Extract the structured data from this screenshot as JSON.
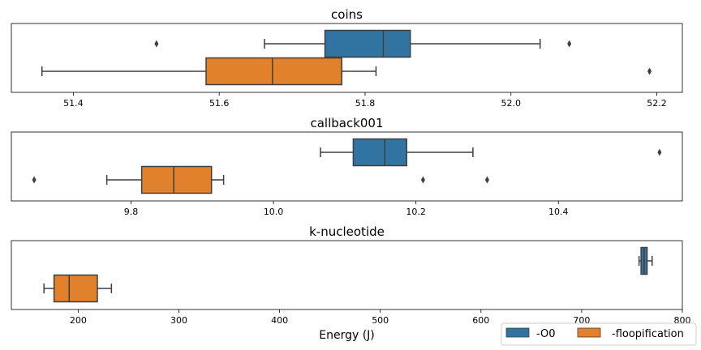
{
  "chart_data": [
    {
      "type": "box",
      "title": "coins",
      "xlabel": "",
      "ylabel": "",
      "xlim": [
        51.315,
        52.235
      ],
      "xticks": [
        51.4,
        51.6,
        51.8,
        52.0,
        52.2
      ],
      "tick_labels": [
        "51.4",
        "51.6",
        "51.8",
        "52.0",
        "52.2"
      ],
      "series": [
        {
          "name": "-O0",
          "q1": 51.745,
          "median": 51.825,
          "q3": 51.862,
          "whisker_low": 51.662,
          "whisker_high": 52.04,
          "outliers": [
            51.514,
            52.08
          ]
        },
        {
          "name": "-floopification",
          "q1": 51.582,
          "median": 51.673,
          "q3": 51.768,
          "whisker_low": 51.357,
          "whisker_high": 51.815,
          "outliers": [
            52.19
          ]
        }
      ]
    },
    {
      "type": "box",
      "title": "callback001",
      "xlabel": "",
      "ylabel": "",
      "xlim": [
        9.632,
        10.574
      ],
      "xticks": [
        9.8,
        10.0,
        10.2,
        10.4
      ],
      "tick_labels": [
        "9.8",
        "10.0",
        "10.2",
        "10.4"
      ],
      "series": [
        {
          "name": "-O0",
          "q1": 10.112,
          "median": 10.156,
          "q3": 10.187,
          "whisker_low": 10.066,
          "whisker_high": 10.28,
          "outliers": [
            10.542
          ]
        },
        {
          "name": "-floopification",
          "q1": 9.815,
          "median": 9.86,
          "q3": 9.913,
          "whisker_low": 9.766,
          "whisker_high": 9.93,
          "outliers": [
            9.664,
            10.21,
            10.3
          ]
        }
      ]
    },
    {
      "type": "box",
      "title": "k-nucleotide",
      "xlabel": "Energy (J)",
      "ylabel": "",
      "xlim": [
        133.6,
        800
      ],
      "xticks": [
        200,
        300,
        400,
        500,
        600,
        700,
        800
      ],
      "tick_labels": [
        "200",
        "300",
        "400",
        "500",
        "600",
        "700",
        "800"
      ],
      "series": [
        {
          "name": "-O0",
          "q1": 759,
          "median": 762,
          "q3": 765,
          "whisker_low": 757,
          "whisker_high": 770,
          "outliers": []
        },
        {
          "name": "-floopification",
          "q1": 176,
          "median": 191,
          "q3": 219,
          "whisker_low": 166,
          "whisker_high": 233,
          "outliers": []
        }
      ]
    }
  ],
  "legend": {
    "position": "lower-right",
    "entries": [
      {
        "label": "-O0",
        "color": "#3274a1"
      },
      {
        "label": "-floopification",
        "color": "#e1812c"
      }
    ]
  },
  "colors": {
    "O0": "#3274a1",
    "floopification": "#e1812c",
    "lines": "#3f3f3f"
  }
}
